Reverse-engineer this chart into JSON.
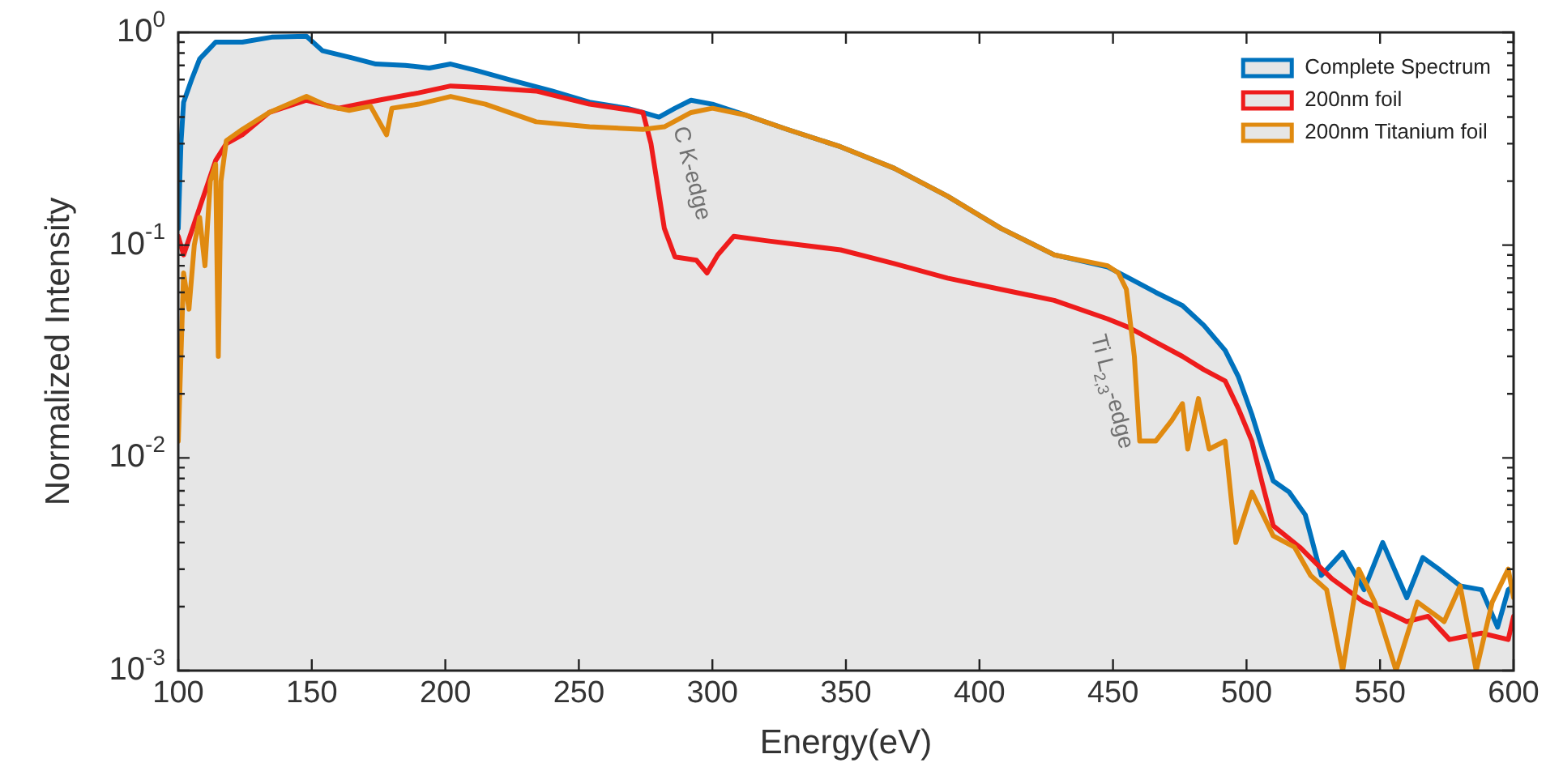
{
  "chart_data": {
    "type": "line",
    "xlabel": "Energy(eV)",
    "ylabel": "Normalized Intensity",
    "log": "y",
    "xlim": [
      100,
      600
    ],
    "xticks": [
      100,
      150,
      200,
      250,
      300,
      350,
      400,
      450,
      500,
      550,
      600
    ],
    "ylim": [
      0.001,
      1
    ],
    "yticks": [
      {
        "value": 0.001,
        "label": "10$^{-3}$"
      },
      {
        "value": 0.01,
        "label": "10$^{-2}$"
      },
      {
        "value": 0.1,
        "label": "10$^{-1}$"
      },
      {
        "value": 1,
        "label": "10$^{0}$"
      }
    ],
    "grid": false,
    "legend": "top right",
    "marker": "none",
    "line_style": "solid",
    "series": [
      {
        "name": "Complete Spectrum",
        "type": "area",
        "color": "#0072bd",
        "x": [
          100,
          101,
          102,
          105,
          108,
          114,
          124,
          135,
          148,
          154,
          165,
          174,
          185,
          194,
          202,
          212,
          224,
          240,
          254,
          268,
          274,
          280,
          286,
          292,
          300,
          312,
          328,
          348,
          368,
          388,
          408,
          428,
          448,
          456,
          466,
          476,
          484,
          492,
          497,
          502,
          506,
          510,
          516,
          522,
          528,
          536,
          544,
          551,
          560,
          566,
          572,
          580,
          588,
          594,
          598,
          600
        ],
        "values": [
          0.12,
          0.3,
          0.47,
          0.6,
          0.75,
          0.9,
          0.9,
          0.95,
          0.96,
          0.82,
          0.76,
          0.71,
          0.7,
          0.68,
          0.71,
          0.66,
          0.6,
          0.53,
          0.47,
          0.44,
          0.42,
          0.4,
          0.44,
          0.48,
          0.46,
          0.41,
          0.35,
          0.29,
          0.23,
          0.17,
          0.12,
          0.09,
          0.079,
          0.07,
          0.06,
          0.052,
          0.042,
          0.032,
          0.024,
          0.016,
          0.011,
          0.0078,
          0.0069,
          0.0054,
          0.0028,
          0.0036,
          0.0024,
          0.004,
          0.0022,
          0.0034,
          0.003,
          0.0025,
          0.0024,
          0.0016,
          0.0024,
          0.0025
        ]
      },
      {
        "name": "200nm foil",
        "color": "#ee1c1c",
        "x": [
          100,
          102,
          108,
          114,
          118,
          124,
          134,
          148,
          160,
          175,
          190,
          202,
          215,
          234,
          254,
          270,
          274,
          277,
          282,
          286,
          294,
          298,
          302,
          308,
          320,
          348,
          368,
          388,
          408,
          428,
          448,
          456,
          466,
          476,
          484,
          492,
          497,
          502,
          506,
          510,
          520,
          526,
          532,
          544,
          552,
          560,
          568,
          576,
          588,
          598,
          600
        ],
        "values": [
          0.11,
          0.09,
          0.15,
          0.25,
          0.3,
          0.33,
          0.42,
          0.48,
          0.44,
          0.48,
          0.52,
          0.56,
          0.55,
          0.53,
          0.46,
          0.43,
          0.42,
          0.3,
          0.12,
          0.088,
          0.085,
          0.074,
          0.09,
          0.11,
          0.105,
          0.095,
          0.082,
          0.07,
          0.062,
          0.055,
          0.045,
          0.041,
          0.035,
          0.03,
          0.026,
          0.023,
          0.017,
          0.012,
          0.0075,
          0.0048,
          0.0038,
          0.0032,
          0.0027,
          0.0021,
          0.0019,
          0.0017,
          0.0018,
          0.0014,
          0.0015,
          0.0014,
          0.0018
        ]
      },
      {
        "name": "200nm Titanium foil",
        "color": "#e08a10",
        "x": [
          100,
          101,
          102,
          104,
          106,
          108,
          110,
          112,
          114,
          115,
          116,
          118,
          124,
          134,
          148,
          156,
          164,
          172,
          178,
          180,
          190,
          202,
          215,
          234,
          254,
          274,
          282,
          292,
          300,
          312,
          328,
          348,
          368,
          388,
          408,
          428,
          448,
          452,
          455,
          458,
          460,
          466,
          472,
          476,
          478,
          482,
          486,
          492,
          496,
          502,
          510,
          518,
          524,
          530,
          536,
          542,
          548,
          556,
          564,
          574,
          580,
          586,
          592,
          598,
          600
        ],
        "values": [
          0.012,
          0.03,
          0.074,
          0.05,
          0.1,
          0.135,
          0.08,
          0.2,
          0.24,
          0.03,
          0.2,
          0.31,
          0.35,
          0.42,
          0.5,
          0.45,
          0.43,
          0.45,
          0.33,
          0.44,
          0.46,
          0.5,
          0.46,
          0.38,
          0.36,
          0.35,
          0.36,
          0.42,
          0.44,
          0.41,
          0.35,
          0.29,
          0.23,
          0.17,
          0.12,
          0.09,
          0.08,
          0.074,
          0.062,
          0.03,
          0.012,
          0.012,
          0.015,
          0.018,
          0.011,
          0.019,
          0.011,
          0.012,
          0.004,
          0.0069,
          0.0043,
          0.0038,
          0.0028,
          0.0024,
          0.001,
          0.003,
          0.0021,
          0.001,
          0.0021,
          0.0017,
          0.0025,
          0.001,
          0.0021,
          0.003,
          0.0022
        ]
      }
    ],
    "annotations": [
      {
        "text": "C K-edge",
        "x": 280,
        "y": 0.17
      },
      {
        "text": "Ti L$_{2,3}$-edge",
        "x": 458,
        "y": 0.016
      }
    ]
  }
}
